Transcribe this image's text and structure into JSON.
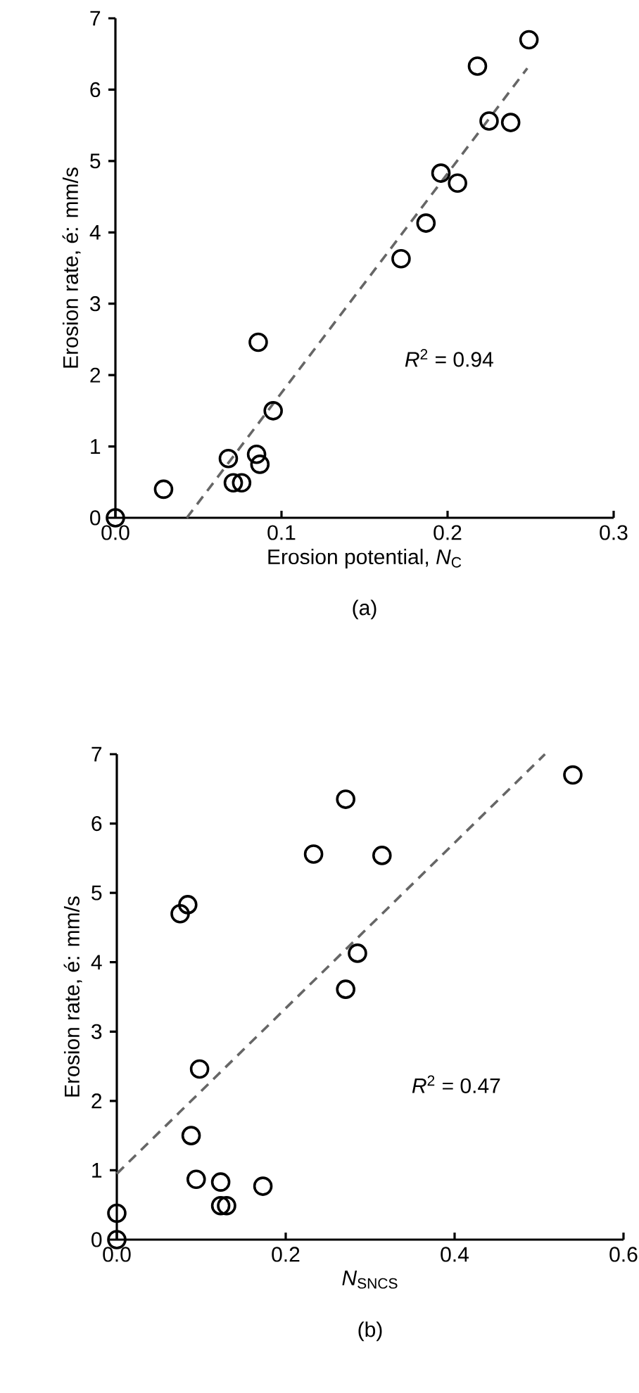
{
  "chart_data": [
    {
      "type": "scatter",
      "xlabel": "Erosion potential, *N*$_{C}$",
      "ylabel": "Erosion rate, é: mm/s",
      "annotations": [
        "*R*$^{2}$ = 0.94",
        "(a)"
      ],
      "xlim": [
        0,
        0.3
      ],
      "ylim": [
        0,
        7
      ],
      "xticks": [
        {
          "value": 0,
          "label": "0.0"
        },
        0.1,
        0.2,
        0.3
      ],
      "yticks": [
        0,
        1,
        2,
        3,
        4,
        5,
        6,
        7
      ],
      "marker": "circle",
      "series": [
        {
          "color": "#000000",
          "x": [
            0,
            0.029,
            0.068,
            0.071,
            0.076,
            0.085,
            0.087,
            0.086,
            0.095,
            0.172,
            0.187,
            0.196,
            0.206,
            0.218,
            0.225,
            0.238,
            0.249
          ],
          "values": [
            0,
            0.4,
            0.83,
            0.49,
            0.49,
            0.89,
            0.75,
            2.46,
            1.5,
            3.63,
            4.13,
            4.83,
            4.69,
            6.33,
            5.56,
            5.54,
            6.7
          ]
        },
        {
          "type": "line",
          "line_style": "dashed",
          "marker": "none",
          "color": "#666666",
          "x": [
            0.043,
            0.248
          ],
          "values": [
            0,
            6.3
          ]
        }
      ]
    },
    {
      "type": "scatter",
      "xlabel": "*N*$_{SNCS}$",
      "ylabel": "Erosion rate, é: mm/s",
      "annotations": [
        "*R*$^{2}$ = 0.47",
        "(b)"
      ],
      "xlim": [
        0,
        0.6
      ],
      "ylim": [
        0,
        7
      ],
      "xticks": [
        {
          "value": 0,
          "label": "0.0"
        },
        0.2,
        0.4,
        0.6
      ],
      "yticks": [
        0,
        1,
        2,
        3,
        4,
        5,
        6,
        7
      ],
      "marker": "circle",
      "series": [
        {
          "color": "#000000",
          "x": [
            0,
            0,
            0.075,
            0.084,
            0.098,
            0.088,
            0.094,
            0.123,
            0.123,
            0.13,
            0.173,
            0.233,
            0.271,
            0.271,
            0.285,
            0.314,
            0.54
          ],
          "values": [
            0,
            0.38,
            4.7,
            4.83,
            2.46,
            1.5,
            0.87,
            0.83,
            0.49,
            0.49,
            0.77,
            5.56,
            6.35,
            3.61,
            4.13,
            5.54,
            6.7
          ]
        },
        {
          "type": "line",
          "line_style": "dashed",
          "marker": "none",
          "color": "#666666",
          "x": [
            0,
            0.507
          ],
          "values": [
            0.95,
            7
          ]
        }
      ]
    }
  ]
}
